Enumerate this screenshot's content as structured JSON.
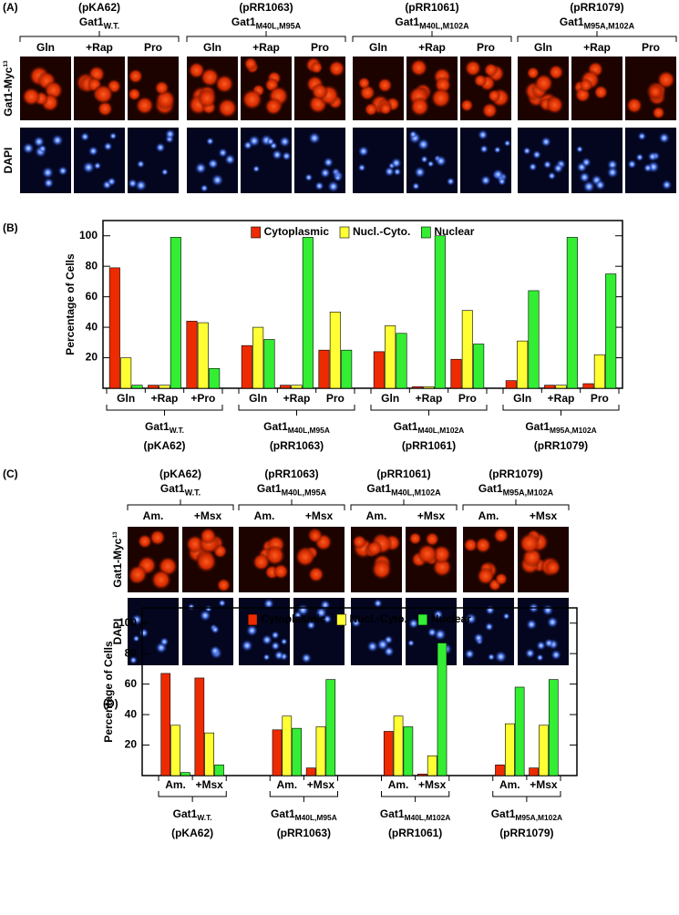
{
  "panel_a": {
    "label": "(A)",
    "row_labels": [
      {
        "text": "Gat1-Myc",
        "superscript": "13"
      },
      {
        "text": "DAPI"
      }
    ],
    "groups": [
      {
        "plasmid": "(pKA62)",
        "name": "Gat1",
        "subscript": "W.T.",
        "conditions": [
          "Gln",
          "+Rap",
          "Pro"
        ]
      },
      {
        "plasmid": "(pRR1063)",
        "name": "Gat1",
        "subscript": "M40L,M95A",
        "conditions": [
          "Gln",
          "+Rap",
          "Pro"
        ]
      },
      {
        "plasmid": "(pRR1061)",
        "name": "Gat1",
        "subscript": "M40L,M102A",
        "conditions": [
          "Gln",
          "+Rap",
          "Pro"
        ]
      },
      {
        "plasmid": "(pRR1079)",
        "name": "Gat1",
        "subscript": "M95A,M102A",
        "conditions": [
          "Gln",
          "+Rap",
          "Pro"
        ]
      }
    ]
  },
  "chart_data": [
    {
      "type": "bar",
      "label": "(B)",
      "ylabel": "Percentage of Cells",
      "categories": [
        "Gln",
        "+Rap",
        "+Pro",
        "Gln",
        "+Rap",
        "Pro",
        "Gln",
        "+Rap",
        "Pro",
        "Gln",
        "+Rap",
        "Pro"
      ],
      "groups": [
        {
          "name": "Gat1",
          "subscript": "W.T.",
          "plasmid": "(pKA62)"
        },
        {
          "name": "Gat1",
          "subscript": "M40L,M95A",
          "plasmid": "(pRR1063)"
        },
        {
          "name": "Gat1",
          "subscript": "M40L,M102A",
          "plasmid": "(pRR1061)"
        },
        {
          "name": "Gat1",
          "subscript": "M95A,M102A",
          "plasmid": "(pRR1079)"
        }
      ],
      "series": [
        {
          "name": "Cytoplasmic",
          "color": "#ee2a00",
          "values": [
            79,
            2,
            44,
            28,
            2,
            25,
            24,
            1,
            19,
            5,
            2,
            3
          ]
        },
        {
          "name": "Nucl.-Cyto.",
          "color": "#ffff33",
          "values": [
            20,
            2,
            43,
            40,
            2,
            50,
            41,
            1,
            51,
            31,
            2,
            22
          ]
        },
        {
          "name": "Nuclear",
          "color": "#33ee33",
          "values": [
            2,
            99,
            13,
            32,
            99,
            25,
            36,
            100,
            29,
            64,
            99,
            75
          ]
        }
      ],
      "ylim": [
        0,
        110
      ],
      "yticks": [
        20,
        40,
        60,
        80,
        100
      ],
      "legend": "top"
    },
    {
      "type": "bar",
      "label": "(D)",
      "ylabel": "Percentage of Cells",
      "categories": [
        "Am.",
        "+Msx",
        "Am.",
        "+Msx",
        "Am.",
        "+Msx",
        "Am.",
        "+Msx"
      ],
      "groups": [
        {
          "name": "Gat1",
          "subscript": "W.T.",
          "plasmid": "(pKA62)"
        },
        {
          "name": "Gat1",
          "subscript": "M40L,M95A",
          "plasmid": "(pRR1063)"
        },
        {
          "name": "Gat1",
          "subscript": "M40L,M102A",
          "plasmid": "(pRR1061)"
        },
        {
          "name": "Gat1",
          "subscript": "M95A,M102A",
          "plasmid": "(pRR1079)"
        }
      ],
      "series": [
        {
          "name": "Cytoplasmic",
          "color": "#ee2a00",
          "values": [
            67,
            64,
            30,
            5,
            29,
            1,
            7,
            5
          ]
        },
        {
          "name": "Nucl.-Cyto.",
          "color": "#ffff33",
          "values": [
            33,
            28,
            39,
            32,
            39,
            13,
            34,
            33
          ]
        },
        {
          "name": "Nuclear",
          "color": "#33ee33",
          "values": [
            2,
            7,
            31,
            63,
            32,
            87,
            58,
            63
          ]
        }
      ],
      "ylim": [
        0,
        110
      ],
      "yticks": [
        20,
        40,
        60,
        80,
        100
      ],
      "legend": "top"
    }
  ],
  "panel_c": {
    "label": "(C)",
    "row_labels": [
      {
        "text": "Gat1-Myc",
        "superscript": "13"
      },
      {
        "text": "DAPI"
      }
    ],
    "groups": [
      {
        "plasmid": "(pKA62)",
        "name": "Gat1",
        "subscript": "W.T.",
        "conditions": [
          "Am.",
          "+Msx"
        ]
      },
      {
        "plasmid": "(pRR1063)",
        "name": "Gat1",
        "subscript": "M40L,M95A",
        "conditions": [
          "Am.",
          "+Msx"
        ]
      },
      {
        "plasmid": "(pRR1061)",
        "name": "Gat1",
        "subscript": "M40L,M102A",
        "conditions": [
          "Am.",
          "+Msx"
        ]
      },
      {
        "plasmid": "(pRR1079)",
        "name": "Gat1",
        "subscript": "M95A,M102A",
        "conditions": [
          "Am.",
          "+Msx"
        ]
      }
    ]
  }
}
